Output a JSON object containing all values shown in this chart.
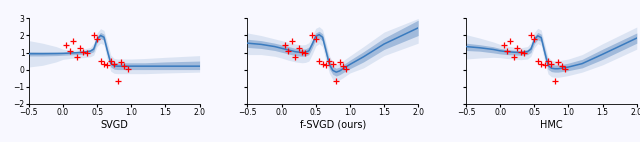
{
  "xlim": [
    -0.5,
    2.0
  ],
  "ylim": [
    -2,
    3
  ],
  "yticks": [
    -2,
    -1,
    0,
    1,
    2,
    3
  ],
  "xticks": [
    -0.5,
    0.0,
    0.5,
    1.0,
    1.5,
    2.0
  ],
  "titles": [
    "SVGD",
    "f-SVGD (ours)",
    "HMC"
  ],
  "fig_width": 6.4,
  "fig_height": 1.42,
  "svgd_mean_x": [
    -0.5,
    -0.3,
    -0.1,
    0.0,
    0.1,
    0.2,
    0.3,
    0.4,
    0.45,
    0.5,
    0.55,
    0.6,
    0.65,
    0.7,
    0.75,
    0.8,
    0.85,
    0.9,
    1.0,
    1.2,
    1.5,
    2.0
  ],
  "svgd_mean_y": [
    0.93,
    0.93,
    0.94,
    0.95,
    0.97,
    0.99,
    1.02,
    1.08,
    1.2,
    1.78,
    2.0,
    1.9,
    1.1,
    0.35,
    0.22,
    0.2,
    0.2,
    0.2,
    0.2,
    0.2,
    0.2,
    0.2
  ],
  "svgd_up1": [
    1.05,
    1.04,
    1.03,
    1.02,
    1.04,
    1.06,
    1.1,
    1.18,
    1.35,
    1.95,
    2.18,
    2.08,
    1.3,
    0.55,
    0.42,
    0.4,
    0.4,
    0.4,
    0.4,
    0.4,
    0.45,
    0.5
  ],
  "svgd_lo1": [
    0.8,
    0.8,
    0.82,
    0.84,
    0.86,
    0.88,
    0.9,
    0.96,
    1.05,
    1.6,
    1.82,
    1.72,
    0.9,
    0.15,
    0.02,
    0.0,
    0.0,
    0.0,
    0.0,
    0.0,
    0.0,
    0.0
  ],
  "svgd_up2": [
    1.7,
    1.55,
    1.35,
    1.2,
    1.15,
    1.15,
    1.2,
    1.3,
    1.55,
    2.15,
    2.4,
    2.3,
    1.6,
    0.85,
    0.65,
    0.62,
    0.62,
    0.62,
    0.62,
    0.65,
    0.72,
    0.82
  ],
  "svgd_lo2": [
    0.15,
    0.25,
    0.45,
    0.6,
    0.65,
    0.68,
    0.7,
    0.75,
    0.85,
    1.35,
    1.55,
    1.45,
    0.55,
    -0.1,
    -0.22,
    -0.24,
    -0.24,
    -0.24,
    -0.24,
    -0.24,
    -0.2,
    -0.15
  ],
  "fsvgd_mean_x": [
    -0.5,
    -0.3,
    -0.1,
    0.0,
    0.1,
    0.2,
    0.3,
    0.35,
    0.4,
    0.45,
    0.5,
    0.55,
    0.6,
    0.65,
    0.7,
    0.75,
    0.8,
    0.85,
    0.9,
    1.0,
    1.2,
    1.5,
    2.0
  ],
  "fsvgd_mean_y": [
    1.55,
    1.48,
    1.35,
    1.25,
    1.15,
    1.05,
    1.0,
    1.02,
    1.1,
    1.5,
    1.95,
    2.05,
    1.9,
    1.1,
    0.3,
    -0.05,
    -0.15,
    -0.08,
    0.05,
    0.3,
    0.75,
    1.5,
    2.45
  ],
  "fsvgd_up1": [
    1.78,
    1.7,
    1.55,
    1.45,
    1.35,
    1.25,
    1.2,
    1.22,
    1.32,
    1.72,
    2.15,
    2.25,
    2.1,
    1.35,
    0.55,
    0.18,
    0.08,
    0.15,
    0.28,
    0.55,
    1.05,
    1.85,
    2.9
  ],
  "fsvgd_lo1": [
    1.3,
    1.24,
    1.12,
    1.02,
    0.92,
    0.82,
    0.78,
    0.8,
    0.88,
    1.28,
    1.75,
    1.85,
    1.68,
    0.88,
    0.05,
    -0.28,
    -0.38,
    -0.3,
    -0.18,
    0.05,
    0.45,
    1.18,
    2.0
  ],
  "fsvgd_up2": [
    2.15,
    2.0,
    1.8,
    1.7,
    1.6,
    1.5,
    1.45,
    1.47,
    1.58,
    2.0,
    2.42,
    2.52,
    2.35,
    1.6,
    0.82,
    0.42,
    0.3,
    0.38,
    0.52,
    0.8,
    1.35,
    2.2,
    3.0
  ],
  "fsvgd_lo2": [
    0.88,
    0.88,
    0.78,
    0.68,
    0.55,
    0.45,
    0.4,
    0.42,
    0.5,
    0.9,
    1.38,
    1.52,
    1.35,
    0.52,
    -0.22,
    -0.58,
    -0.68,
    -0.6,
    -0.48,
    -0.2,
    0.1,
    0.82,
    1.55
  ],
  "hmc_mean_x": [
    -0.5,
    -0.3,
    -0.1,
    0.0,
    0.1,
    0.2,
    0.3,
    0.4,
    0.45,
    0.5,
    0.55,
    0.6,
    0.65,
    0.7,
    0.75,
    0.8,
    0.85,
    0.9,
    1.0,
    1.2,
    1.5,
    2.0
  ],
  "hmc_mean_y": [
    1.35,
    1.28,
    1.18,
    1.1,
    1.05,
    1.02,
    1.0,
    1.05,
    1.2,
    1.75,
    1.98,
    1.88,
    1.05,
    0.25,
    0.08,
    0.05,
    0.05,
    0.08,
    0.15,
    0.35,
    0.9,
    1.85
  ],
  "hmc_up1": [
    1.55,
    1.46,
    1.34,
    1.24,
    1.18,
    1.14,
    1.12,
    1.18,
    1.38,
    1.95,
    2.18,
    2.08,
    1.28,
    0.48,
    0.3,
    0.27,
    0.27,
    0.3,
    0.38,
    0.6,
    1.2,
    2.15
  ],
  "hmc_lo1": [
    1.12,
    1.08,
    0.98,
    0.92,
    0.88,
    0.86,
    0.84,
    0.88,
    1.0,
    1.52,
    1.75,
    1.65,
    0.8,
    0.02,
    -0.12,
    -0.15,
    -0.15,
    -0.12,
    -0.06,
    0.1,
    0.6,
    1.55
  ],
  "hmc_up2": [
    2.05,
    1.85,
    1.62,
    1.48,
    1.38,
    1.32,
    1.28,
    1.35,
    1.58,
    2.18,
    2.42,
    2.32,
    1.55,
    0.75,
    0.55,
    0.5,
    0.5,
    0.55,
    0.62,
    0.88,
    1.52,
    2.5
  ],
  "hmc_lo2": [
    0.62,
    0.68,
    0.72,
    0.7,
    0.65,
    0.62,
    0.58,
    0.62,
    0.78,
    1.28,
    1.52,
    1.42,
    0.52,
    -0.25,
    -0.42,
    -0.45,
    -0.45,
    -0.42,
    -0.35,
    -0.15,
    0.28,
    1.2
  ],
  "data_x": [
    0.05,
    0.1,
    0.15,
    0.2,
    0.25,
    0.3,
    0.35,
    0.45,
    0.5,
    0.55,
    0.6,
    0.65,
    0.7,
    0.75,
    0.8,
    0.85,
    0.9,
    0.95
  ],
  "data_y": [
    1.45,
    1.1,
    1.65,
    0.75,
    1.25,
    1.05,
    1.0,
    2.05,
    1.8,
    0.5,
    0.35,
    0.25,
    0.5,
    0.3,
    -0.65,
    0.42,
    0.22,
    0.05
  ],
  "line_color": "#3a7bbf",
  "fill_inner_color": "#8dadd4",
  "fill_outer_color": "#c5d5ea",
  "fill_inner_alpha": 0.75,
  "fill_outer_alpha": 0.55,
  "data_color": "red",
  "title_fontsize": 7,
  "tick_fontsize": 5.5,
  "background_color": "#f8f8ff"
}
